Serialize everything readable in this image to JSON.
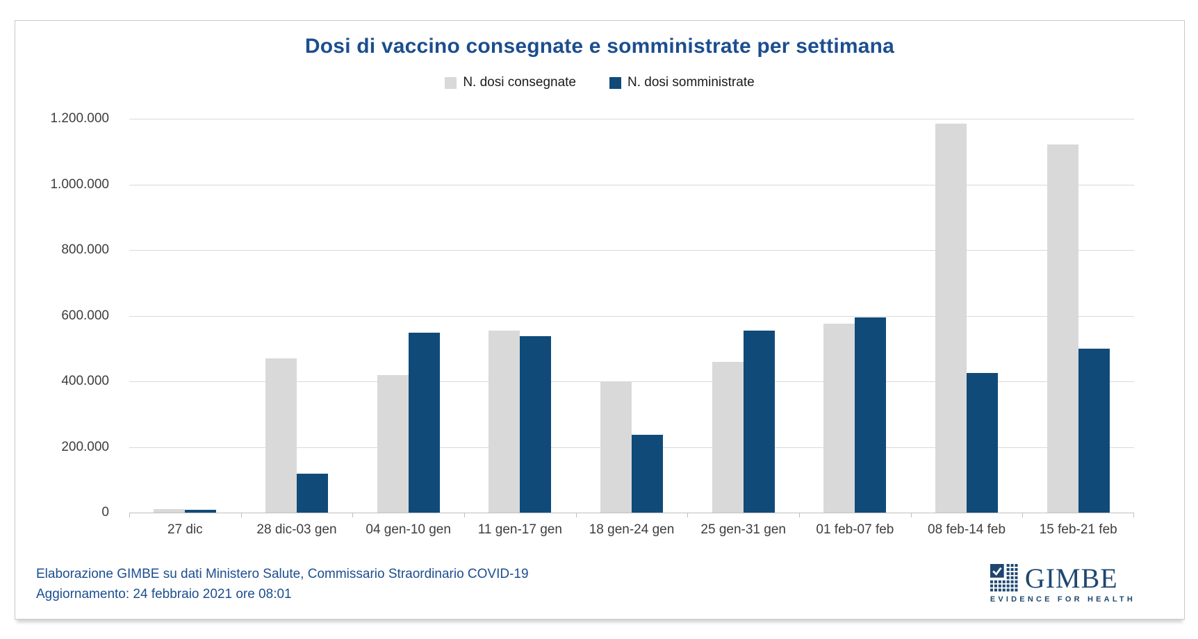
{
  "title": "Dosi di vaccino consegnate e somministrate per settimana",
  "legend": {
    "consegnate": {
      "label": "N. dosi consegnate",
      "color": "#d9d9d9"
    },
    "somministrate": {
      "label": "N. dosi somministrate",
      "color": "#104a79"
    }
  },
  "chart_data": {
    "type": "bar",
    "title": "Dosi di vaccino consegnate e somministrate per settimana",
    "categories": [
      "27 dic",
      "28 dic-03 gen",
      "04 gen-10 gen",
      "11 gen-17 gen",
      "18 gen-24 gen",
      "25 gen-31 gen",
      "01 feb-07 feb",
      "08 feb-14 feb",
      "15 feb-21 feb"
    ],
    "series": [
      {
        "name": "N. dosi consegnate",
        "color": "#d9d9d9",
        "values": [
          10000,
          470000,
          420000,
          555000,
          400000,
          460000,
          575000,
          1185000,
          1122000
        ]
      },
      {
        "name": "N. dosi somministrate",
        "color": "#104a79",
        "values": [
          8000,
          118000,
          548000,
          537000,
          237000,
          555000,
          595000,
          425000,
          500000
        ]
      }
    ],
    "xlabel": "",
    "ylabel": "",
    "ylim": [
      0,
      1200000
    ],
    "ytick_labels": [
      "1.200.000",
      "1.000.000",
      "800.000",
      "600.000",
      "400.000",
      "200.000",
      "0"
    ],
    "grid": "horizontal",
    "legend_position": "top-center"
  },
  "footer": {
    "line1": "Elaborazione GIMBE su dati Ministero Salute, Commissario Straordinario COVID-19",
    "line2": "Aggiornamento: 24 febbraio 2021 ore 08:01"
  },
  "logo": {
    "name": "GIMBE",
    "tagline": "EVIDENCE FOR HEALTH"
  },
  "colors": {
    "title_text": "#1c4e8f",
    "footer_text": "#1c4e8f",
    "bar_consegnate": "#d9d9d9",
    "bar_somministrate": "#104a79",
    "gridline": "#d9d9d9",
    "axis_line": "#bfbfbf",
    "axis_text": "#3d3d3d",
    "logo_blue": "#1e4770"
  }
}
